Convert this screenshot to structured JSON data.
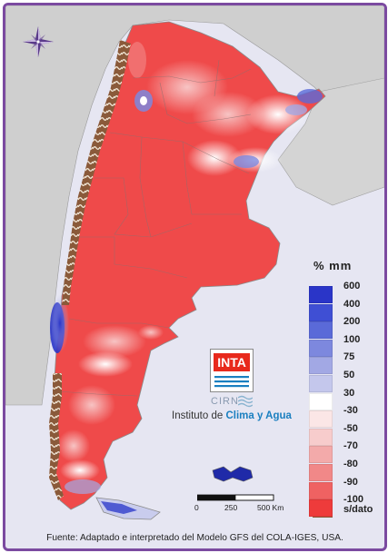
{
  "legend": {
    "unit": "% mm",
    "items": [
      {
        "label": "600",
        "color": "#2a35c8"
      },
      {
        "label": "400",
        "color": "#3f4fd4"
      },
      {
        "label": "200",
        "color": "#5a6ad8"
      },
      {
        "label": "100",
        "color": "#7d88de"
      },
      {
        "label": "75",
        "color": "#a2a8e4"
      },
      {
        "label": "50",
        "color": "#c4c7ec"
      },
      {
        "label": "30",
        "color": "#ffffff"
      },
      {
        "label": "-30",
        "color": "#fbe6e6"
      },
      {
        "label": "-50",
        "color": "#f7cccc"
      },
      {
        "label": "-70",
        "color": "#f3aaaa"
      },
      {
        "label": "-80",
        "color": "#f18888"
      },
      {
        "label": "-90",
        "color": "#ef6262"
      },
      {
        "label": "-100",
        "color": "#ee3b3b"
      }
    ],
    "nodata_label": "s/dato",
    "nodata_color": "#8a5a3a"
  },
  "logo": {
    "inta": "INTA",
    "cirn": "CIRN",
    "institute_prefix": "Instituto de ",
    "institute_highlight": "Clima y Agua"
  },
  "scale": {
    "labels": [
      "0",
      "250",
      "500 Km"
    ]
  },
  "source": "Fuente: Adaptado e interpretado del Modelo GFS del COLA-IGES, USA.",
  "icons": {
    "compass": "compass-rose-icon"
  },
  "colors": {
    "frame": "#7b4aa0",
    "sea": "#e6e6f2",
    "land_outside": "#cfcfcf",
    "deficit": "#ef4a4a",
    "surplus": "#3a45cc"
  }
}
